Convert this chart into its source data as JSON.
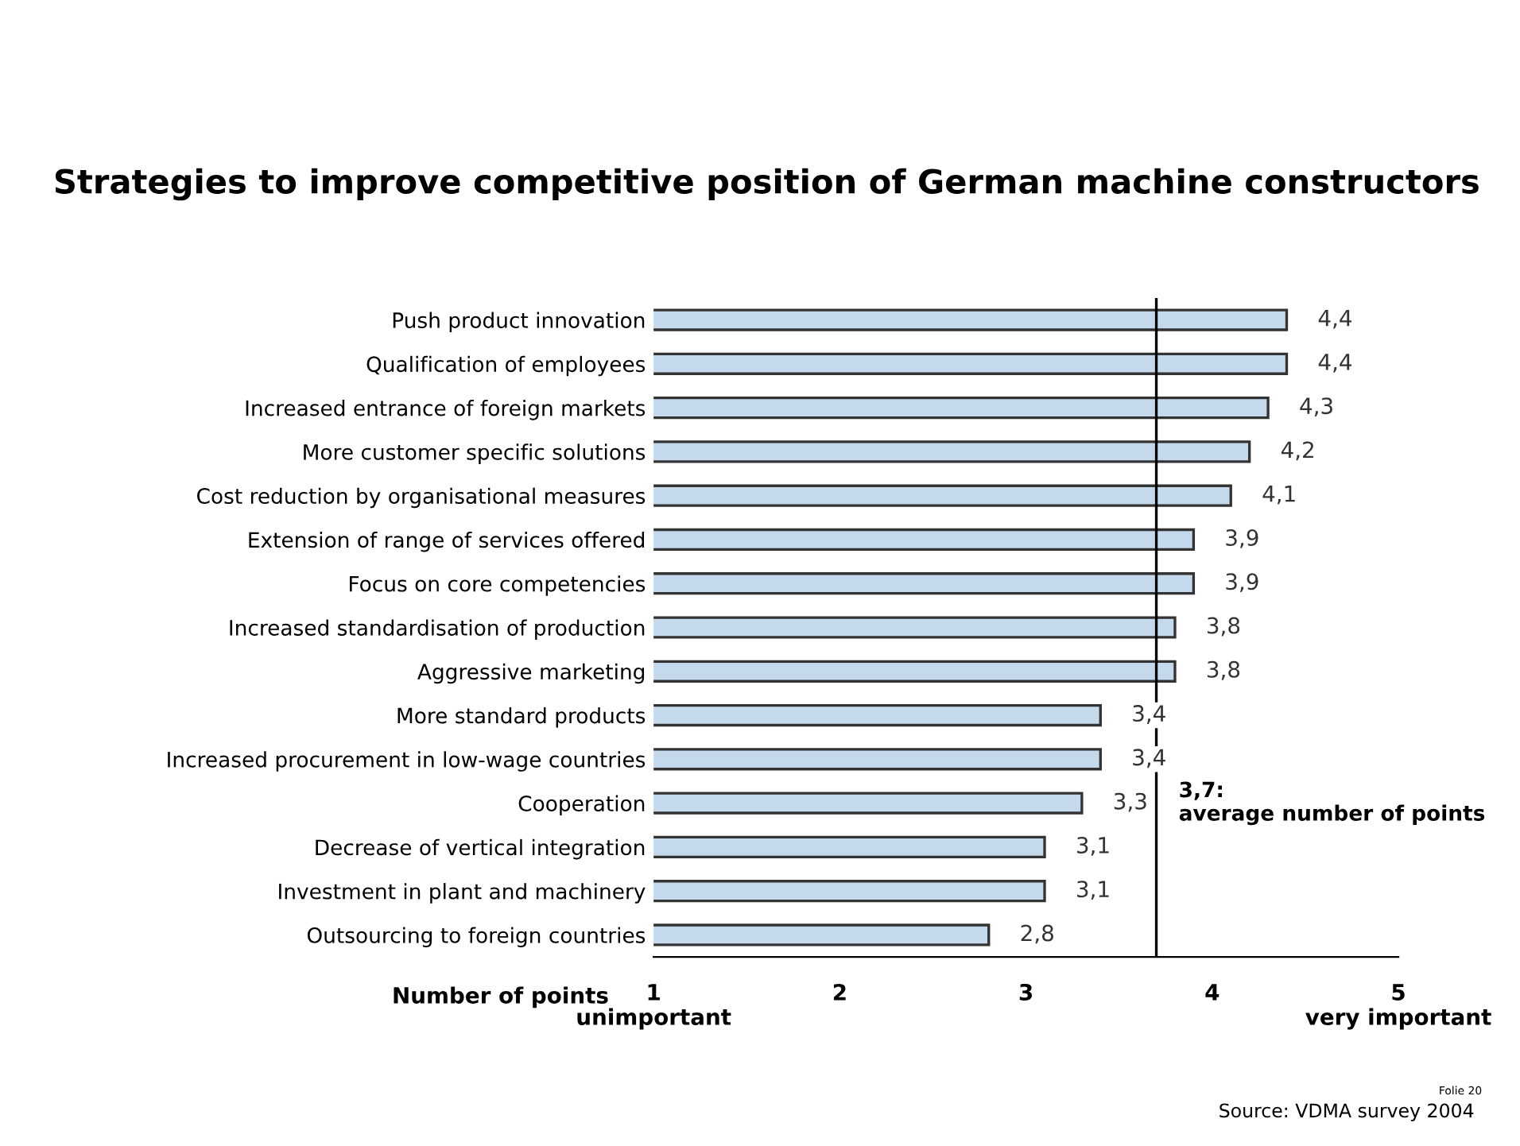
{
  "chart_data": {
    "type": "bar",
    "orientation": "horizontal",
    "title": "Strategies to improve competitive position of German machine constructors",
    "categories": [
      "Push product innovation",
      "Qualification of employees",
      "Increased entrance of foreign markets",
      "More customer specific solutions",
      "Cost reduction by organisational measures",
      "Extension of range of services offered",
      "Focus on core competencies",
      "Increased standardisation of production",
      "Aggressive marketing",
      "More standard products",
      "Increased procurement in low-wage countries",
      "Cooperation",
      "Decrease of vertical integration",
      "Investment in plant and machinery",
      "Outsourcing to foreign countries"
    ],
    "values": [
      4.4,
      4.4,
      4.3,
      4.2,
      4.1,
      3.9,
      3.9,
      3.8,
      3.8,
      3.4,
      3.4,
      3.3,
      3.1,
      3.1,
      2.8
    ],
    "value_labels": [
      "4,4",
      "4,4",
      "4,3",
      "4,2",
      "4,1",
      "3,9",
      "3,9",
      "3,8",
      "3,8",
      "3,4",
      "3,4",
      "3,3",
      "3,1",
      "3,1",
      "2,8"
    ],
    "color": "#c5d9ec",
    "xlabel": "Number of points",
    "xlim": [
      1,
      5
    ],
    "xticks": [
      {
        "value": 1,
        "label": "1\nunimportant"
      },
      2,
      3,
      4,
      {
        "value": 5,
        "label": "5\nvery important"
      }
    ],
    "ref_lines": [
      {
        "axis": "x",
        "value": 3.7,
        "label": "3,7:\naverage number of points",
        "color": "#000000"
      }
    ],
    "grid": false,
    "legend": false,
    "annotations": [
      "Source: VDMA survey 2004",
      "Folie 20"
    ]
  }
}
